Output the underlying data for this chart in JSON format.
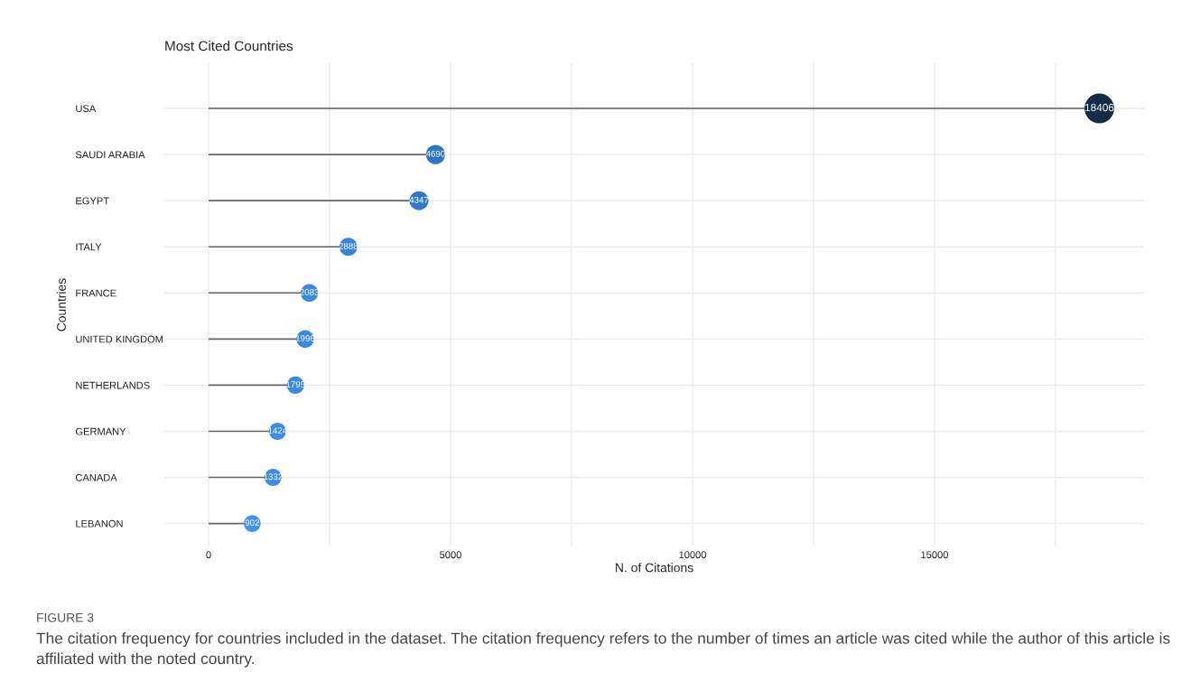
{
  "chart_data": {
    "type": "lollipop",
    "orientation": "horizontal",
    "title": "Most Cited Countries",
    "xlabel": "N. of Citations",
    "ylabel": "Countries",
    "categories": [
      "USA",
      "SAUDI ARABIA",
      "EGYPT",
      "ITALY",
      "FRANCE",
      "UNITED KINGDOM",
      "NETHERLANDS",
      "GERMANY",
      "CANADA",
      "LEBANON"
    ],
    "values": [
      18406,
      4690,
      4347,
      2888,
      2083,
      1996,
      1795,
      1424,
      1332,
      902
    ],
    "sizes": [
      1,
      0.42,
      0.41,
      0.37,
      0.35,
      0.35,
      0.34,
      0.33,
      0.33,
      0.32
    ],
    "colors": [
      "#132b43",
      "#2f76c2",
      "#3179c7",
      "#3884d6",
      "#3b88dc",
      "#3b89dd",
      "#3c8ade",
      "#3e8de2",
      "#3e8ee3",
      "#4294e8"
    ],
    "data_labels": true,
    "xlim": [
      -914,
      19330
    ],
    "xticks": [
      0,
      {
        "value": 2500,
        "label": null
      },
      5000,
      {
        "value": 7500,
        "label": null
      },
      10000,
      {
        "value": 12500,
        "label": null
      },
      15000,
      {
        "value": 17500,
        "label": null
      }
    ],
    "grid": true,
    "annotations": [
      "FIGURE 3",
      "The citation frequency for countries included in the dataset. The citation frequency refers to the number of times an article was cited while the author of this article is affiliated with the noted country."
    ]
  }
}
